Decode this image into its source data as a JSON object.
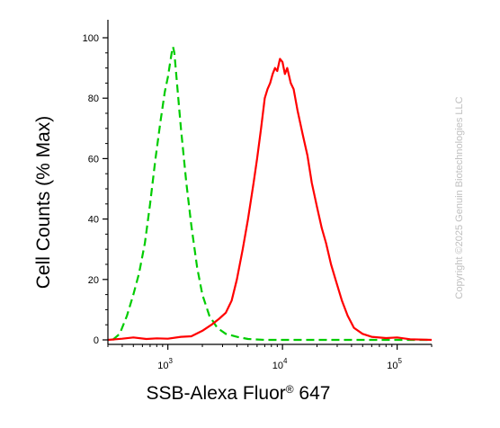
{
  "chart_data": {
    "type": "line",
    "xlabel": "SSB-Alexa Fluor",
    "xlabel_sup": "®",
    "xlabel_suffix": " 647",
    "ylabel": "Cell Counts (% Max)",
    "x_scale": "log",
    "xlim": [
      300,
      200000
    ],
    "ylim": [
      0,
      100
    ],
    "y_ticks": [
      "0",
      "20",
      "40",
      "60",
      "80",
      "100"
    ],
    "x_ticks": [
      {
        "value": 1000,
        "base": "10",
        "exp": "3"
      },
      {
        "value": 10000,
        "base": "10",
        "exp": "4"
      },
      {
        "value": 100000,
        "base": "10",
        "exp": "5"
      }
    ],
    "series": [
      {
        "color": "#00cc00",
        "dash": true,
        "points": [
          [
            330,
            0
          ],
          [
            380,
            2
          ],
          [
            440,
            8
          ],
          [
            500,
            15
          ],
          [
            560,
            22
          ],
          [
            630,
            32
          ],
          [
            700,
            45
          ],
          [
            780,
            60
          ],
          [
            860,
            72
          ],
          [
            940,
            82
          ],
          [
            1000,
            87
          ],
          [
            1040,
            91
          ],
          [
            1080,
            95
          ],
          [
            1110,
            97
          ],
          [
            1140,
            95
          ],
          [
            1200,
            85
          ],
          [
            1300,
            70
          ],
          [
            1450,
            52
          ],
          [
            1600,
            38
          ],
          [
            1800,
            24
          ],
          [
            2000,
            15
          ],
          [
            2300,
            8
          ],
          [
            2700,
            4
          ],
          [
            3200,
            2
          ],
          [
            4000,
            1
          ],
          [
            5000,
            0.3
          ],
          [
            7000,
            0
          ],
          [
            200000,
            0
          ]
        ]
      },
      {
        "color": "#ff0000",
        "dash": false,
        "points": [
          [
            300,
            0
          ],
          [
            400,
            0.4
          ],
          [
            500,
            0.8
          ],
          [
            650,
            0.3
          ],
          [
            800,
            0.5
          ],
          [
            1000,
            0.4
          ],
          [
            1300,
            1
          ],
          [
            1600,
            1.2
          ],
          [
            2000,
            3
          ],
          [
            2400,
            5
          ],
          [
            2800,
            7
          ],
          [
            3200,
            9
          ],
          [
            3600,
            13
          ],
          [
            4000,
            20
          ],
          [
            4500,
            30
          ],
          [
            5000,
            40
          ],
          [
            5600,
            52
          ],
          [
            6000,
            60
          ],
          [
            6500,
            70
          ],
          [
            7000,
            80
          ],
          [
            7400,
            83
          ],
          [
            7800,
            85
          ],
          [
            8200,
            88
          ],
          [
            8600,
            90
          ],
          [
            9000,
            89
          ],
          [
            9500,
            93
          ],
          [
            10000,
            92
          ],
          [
            10500,
            88
          ],
          [
            11000,
            90
          ],
          [
            11800,
            85
          ],
          [
            12500,
            83
          ],
          [
            13500,
            76
          ],
          [
            15000,
            68
          ],
          [
            16500,
            61
          ],
          [
            18000,
            52
          ],
          [
            20000,
            44
          ],
          [
            22000,
            37
          ],
          [
            24000,
            32
          ],
          [
            26500,
            25
          ],
          [
            29000,
            20
          ],
          [
            33000,
            13
          ],
          [
            37000,
            8
          ],
          [
            42000,
            4
          ],
          [
            50000,
            2
          ],
          [
            60000,
            1
          ],
          [
            80000,
            0.6
          ],
          [
            100000,
            0.8
          ],
          [
            130000,
            0.2
          ],
          [
            200000,
            0
          ]
        ]
      }
    ]
  },
  "watermark": "Copyright ©2025 Genuin Biotechnologies LLC"
}
